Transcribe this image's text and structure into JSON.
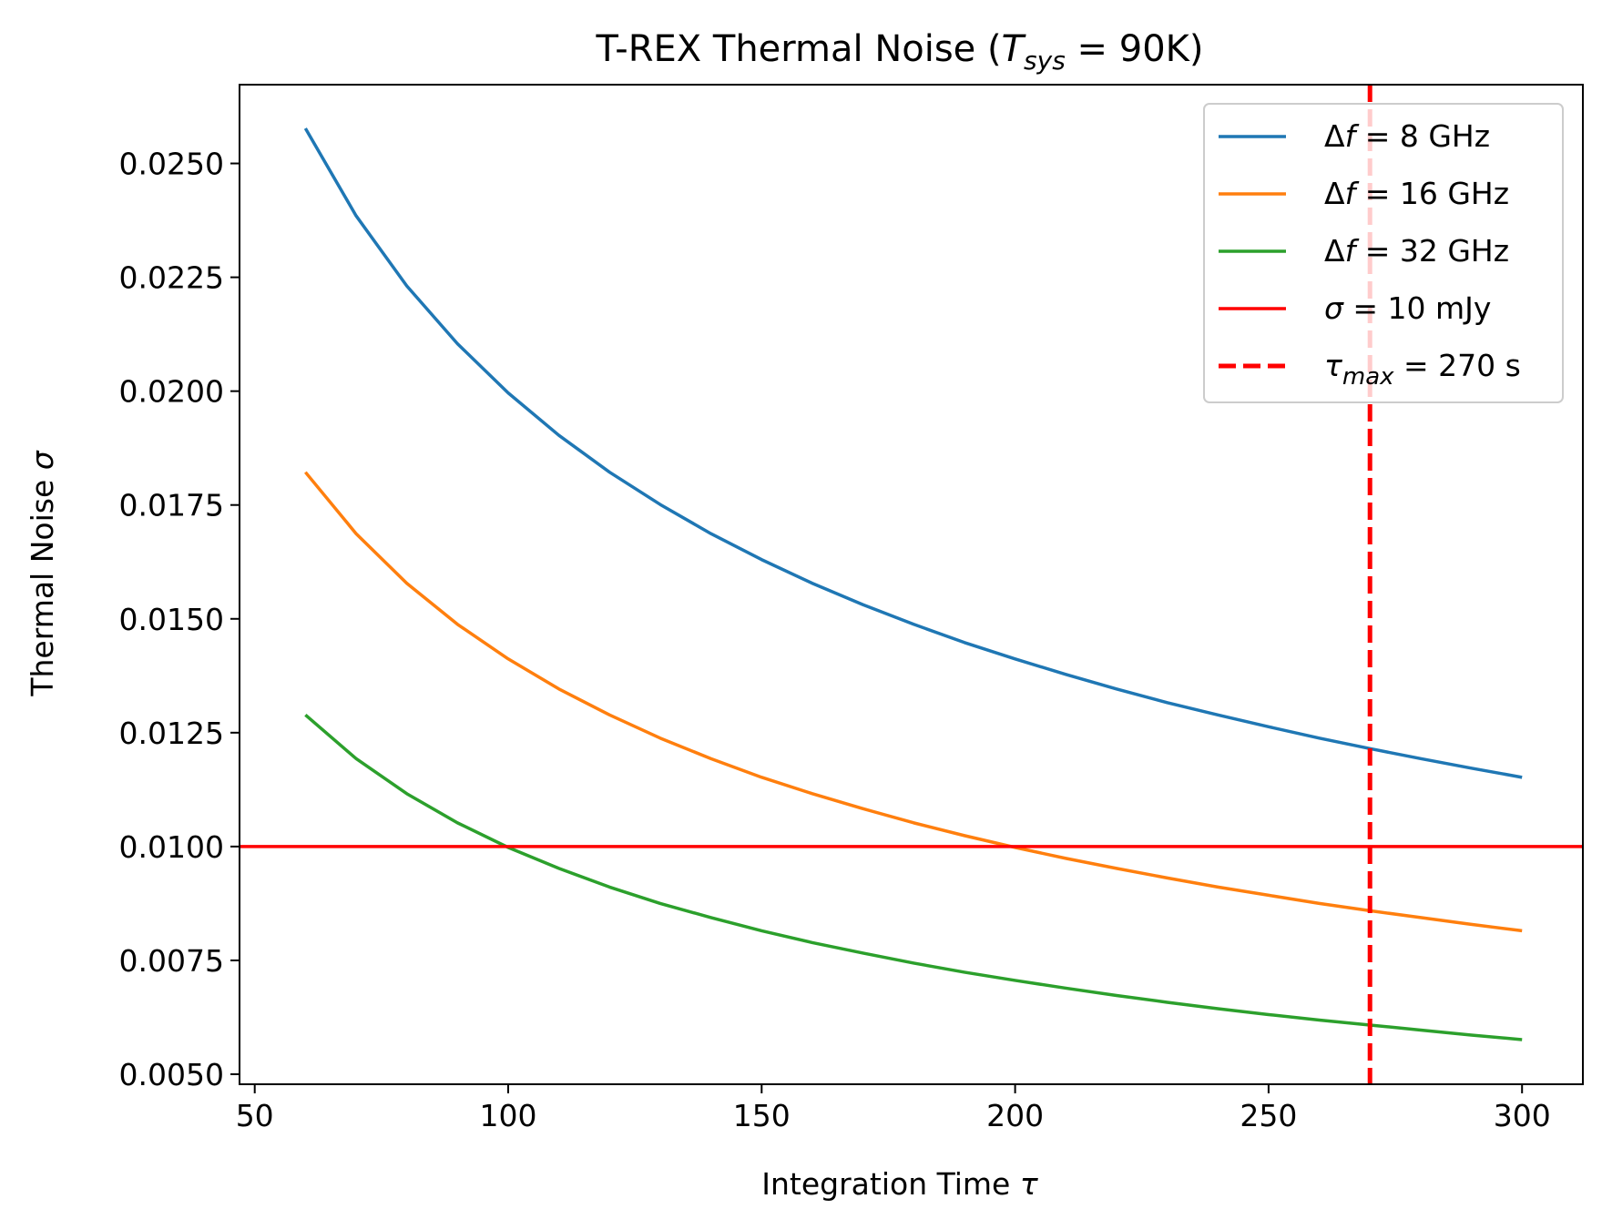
{
  "chart_data": {
    "type": "line",
    "title": "T-REX Thermal Noise (T_sys = 90K)",
    "title_parts": {
      "prefix": "T-REX Thermal Noise (",
      "var": "T",
      "sub": "sys",
      "suffix": " = 90K)"
    },
    "xlabel": "Integration Time τ",
    "xlabel_parts": {
      "text": "Integration Time ",
      "symbol": "τ"
    },
    "ylabel": "Thermal Noise σ",
    "ylabel_parts": {
      "text": "Thermal Noise ",
      "symbol": "σ"
    },
    "xlim": [
      47,
      312
    ],
    "ylim": [
      0.00478,
      0.02673
    ],
    "xticks": [
      50,
      100,
      150,
      200,
      250,
      300
    ],
    "xtick_labels": [
      "50",
      "100",
      "150",
      "200",
      "250",
      "300"
    ],
    "yticks": [
      0.005,
      0.0075,
      0.01,
      0.0125,
      0.015,
      0.0175,
      0.02,
      0.0225,
      0.025
    ],
    "ytick_labels": [
      "0.0050",
      "0.0075",
      "0.0100",
      "0.0125",
      "0.0150",
      "0.0175",
      "0.0200",
      "0.0225",
      "0.0250"
    ],
    "grid": false,
    "x": [
      60,
      70,
      80,
      90,
      100,
      110,
      120,
      130,
      140,
      150,
      160,
      170,
      180,
      190,
      200,
      210,
      220,
      230,
      240,
      250,
      260,
      270,
      280,
      290,
      300
    ],
    "series": [
      {
        "name": "Δf = 8 GHz",
        "label_prefix": "Δ",
        "label_var": "f",
        "label_suffix": " = 8 GHz",
        "color": "#1f77b4",
        "values": [
          0.02577,
          0.02385,
          0.02231,
          0.02104,
          0.01996,
          0.01903,
          0.01822,
          0.01751,
          0.01687,
          0.0163,
          0.01578,
          0.01531,
          0.01488,
          0.01448,
          0.01412,
          0.01378,
          0.01346,
          0.01316,
          0.01289,
          0.01263,
          0.01238,
          0.01215,
          0.01193,
          0.01172,
          0.01152
        ]
      },
      {
        "name": "Δf = 16 GHz",
        "label_prefix": "Δ",
        "label_var": "f",
        "label_suffix": " = 16 GHz",
        "color": "#ff7f0e",
        "values": [
          0.01822,
          0.01687,
          0.01578,
          0.01488,
          0.01412,
          0.01346,
          0.01289,
          0.01238,
          0.01193,
          0.01152,
          0.01116,
          0.01083,
          0.01052,
          0.01024,
          0.00998,
          0.00974,
          0.00952,
          0.00931,
          0.00911,
          0.00893,
          0.00875,
          0.00859,
          0.00844,
          0.00829,
          0.00815
        ]
      },
      {
        "name": "Δf = 32 GHz",
        "label_prefix": "Δ",
        "label_var": "f",
        "label_suffix": " = 32 GHz",
        "color": "#2ca02c",
        "values": [
          0.01289,
          0.01193,
          0.01116,
          0.01052,
          0.00998,
          0.00952,
          0.00911,
          0.00875,
          0.00844,
          0.00815,
          0.00789,
          0.00766,
          0.00744,
          0.00724,
          0.00706,
          0.00689,
          0.00673,
          0.00658,
          0.00644,
          0.00631,
          0.00619,
          0.00608,
          0.00597,
          0.00586,
          0.00576
        ]
      }
    ],
    "hline": {
      "name": "σ = 10 mJy",
      "label_var": "σ",
      "label_suffix": " = 10 mJy",
      "y": 0.01,
      "color": "#ff0000"
    },
    "vline": {
      "name": "τ_max = 270 s",
      "label_var": "τ",
      "label_sub": "max",
      "label_suffix": " = 270 s",
      "x": 270,
      "color": "#ff0000",
      "style": "dashed"
    },
    "legend_position": "top-right"
  }
}
